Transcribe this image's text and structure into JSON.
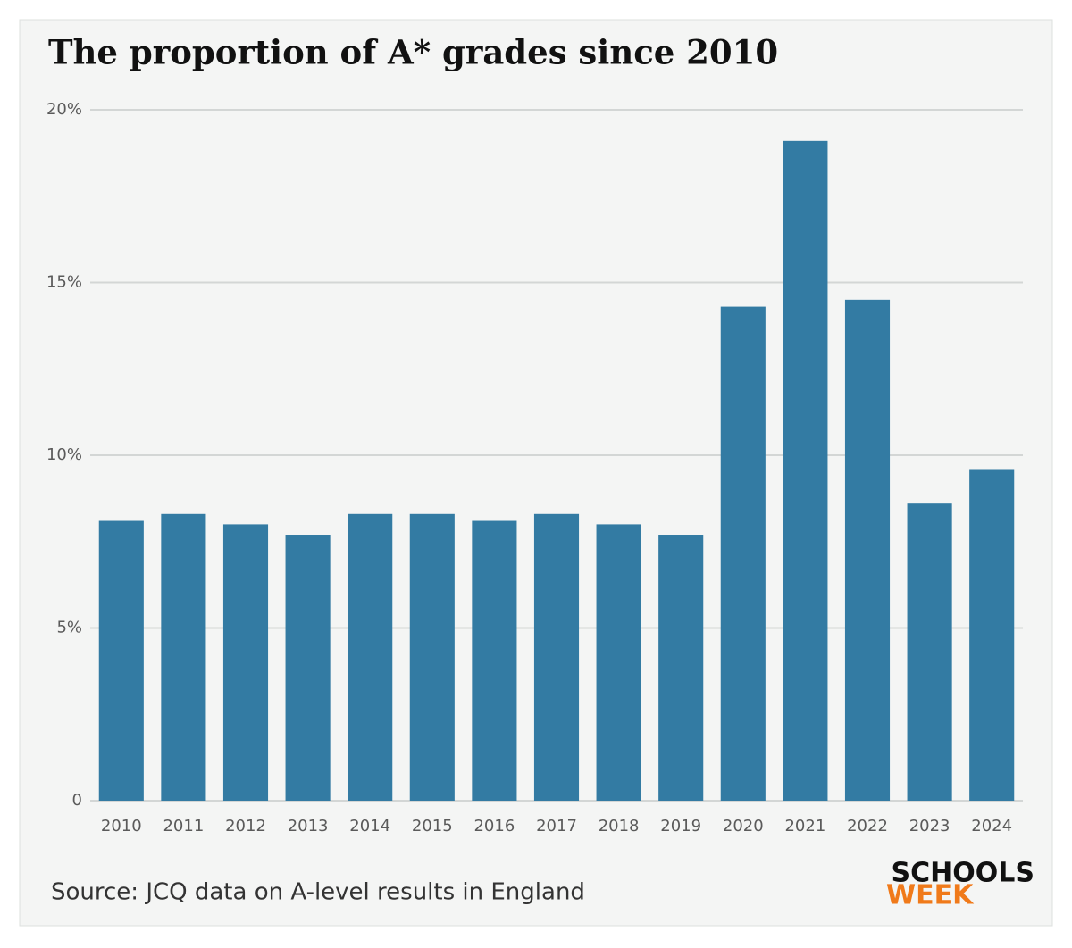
{
  "chart_data": {
    "type": "bar",
    "title": "The proportion of A* grades since 2010",
    "categories": [
      "2010",
      "2011",
      "2012",
      "2013",
      "2014",
      "2015",
      "2016",
      "2017",
      "2018",
      "2019",
      "2020",
      "2021",
      "2022",
      "2023",
      "2024"
    ],
    "values": [
      8.1,
      8.3,
      8.0,
      7.7,
      8.3,
      8.3,
      8.1,
      8.3,
      8.0,
      7.7,
      14.3,
      19.1,
      14.5,
      8.6,
      9.6
    ],
    "color": "#337ba3",
    "ylim": [
      0,
      20
    ],
    "yticks": [
      0,
      {
        "value": 5,
        "label": "5%"
      },
      {
        "value": 10,
        "label": "10%"
      },
      {
        "value": 15,
        "label": "15%"
      },
      {
        "value": 20,
        "label": "20%"
      }
    ],
    "grid": true,
    "source": "Source: JCQ data on A-level results in England"
  },
  "logo": {
    "line1": "SCHOOLS",
    "line2": "WEEK"
  }
}
